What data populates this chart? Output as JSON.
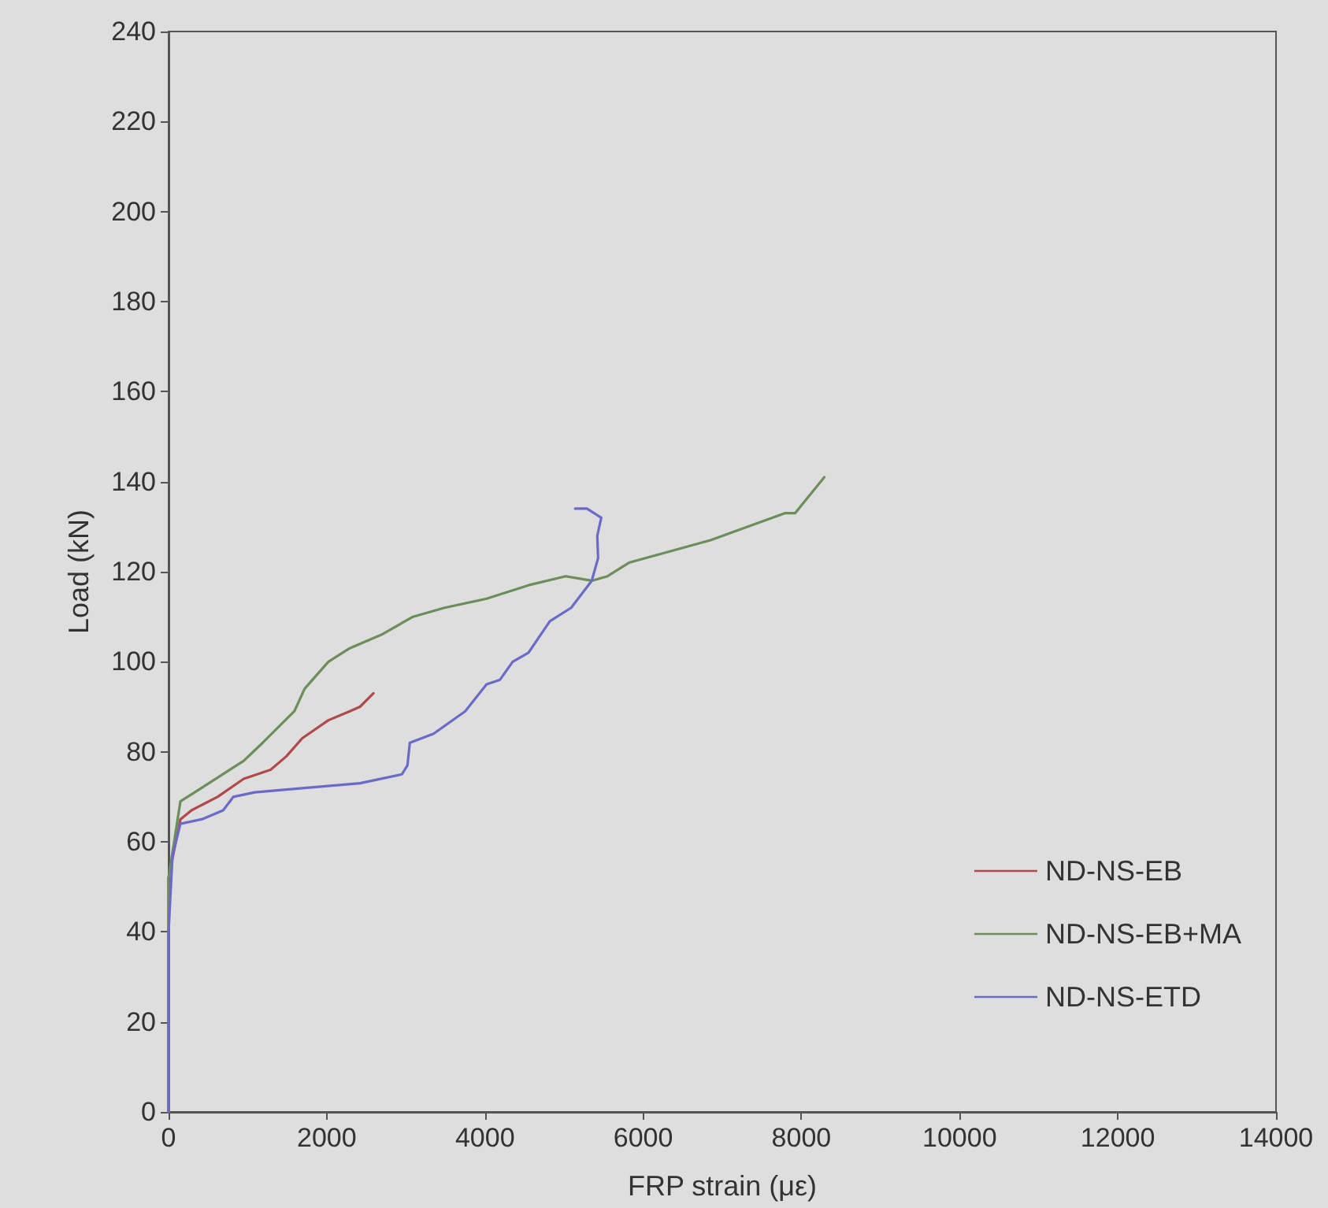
{
  "chart_data": {
    "type": "line",
    "xlabel": "FRP strain (με)",
    "ylabel": "Load (kN)",
    "xlim": [
      0,
      14000
    ],
    "xticks": [
      0,
      2000,
      4000,
      6000,
      8000,
      10000,
      12000,
      14000
    ],
    "ylim": [
      0,
      240
    ],
    "yticks": [
      0,
      20,
      40,
      60,
      80,
      100,
      120,
      140,
      160,
      180,
      200,
      220,
      240
    ],
    "grid": false,
    "legend": "bottom right",
    "marker": "none",
    "line_style": "solid",
    "series": [
      {
        "name": "ND-NS-EB",
        "color": "#b04a4a",
        "x": [
          0,
          0,
          150,
          290,
          620,
          950,
          1290,
          1490,
          1690,
          2020,
          2290,
          2420,
          2590
        ],
        "values": [
          0,
          52,
          65,
          67,
          70,
          74,
          76,
          79,
          83,
          87,
          89,
          90,
          93
        ]
      },
      {
        "name": "ND-NS-EB+MA",
        "color": "#6b8e5a",
        "x": [
          0,
          0,
          150,
          420,
          950,
          1190,
          1590,
          1720,
          2020,
          2290,
          2690,
          3090,
          3490,
          4020,
          4550,
          5020,
          5350,
          5550,
          5820,
          6850,
          7790,
          7920,
          8290
        ],
        "values": [
          0,
          52,
          69,
          72,
          78,
          82,
          89,
          94,
          100,
          103,
          106,
          110,
          112,
          114,
          117,
          119,
          118,
          119,
          122,
          127,
          133,
          133,
          141
        ]
      },
      {
        "name": "ND-NS-ETD",
        "color": "#6a6ac8",
        "x": [
          0,
          0,
          50,
          150,
          420,
          690,
          820,
          1090,
          1750,
          2420,
          2950,
          3020,
          3050,
          3350,
          3750,
          4020,
          4190,
          4350,
          4550,
          4820,
          5090,
          5350,
          5430,
          5420,
          5470,
          5290,
          5140
        ],
        "values": [
          0,
          40,
          57,
          64,
          65,
          67,
          70,
          71,
          72,
          73,
          75,
          77,
          82,
          84,
          89,
          95,
          96,
          100,
          102,
          109,
          112,
          118,
          123,
          128,
          132,
          134,
          134
        ]
      }
    ]
  }
}
